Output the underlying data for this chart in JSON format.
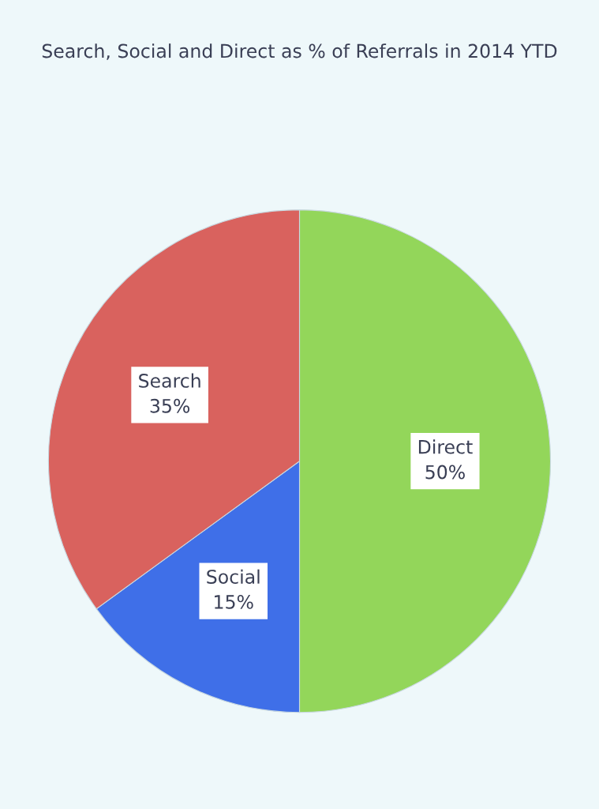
{
  "chart_data": {
    "type": "pie",
    "title": "Search, Social and Direct as % of Referrals in 2014 YTD",
    "categories": [
      "Direct",
      "Social",
      "Search"
    ],
    "values": [
      50,
      15,
      35
    ],
    "value_labels": [
      "50%",
      "15%",
      "35%"
    ],
    "colors": [
      "#93d65a",
      "#3f6fe8",
      "#d9625e"
    ]
  }
}
